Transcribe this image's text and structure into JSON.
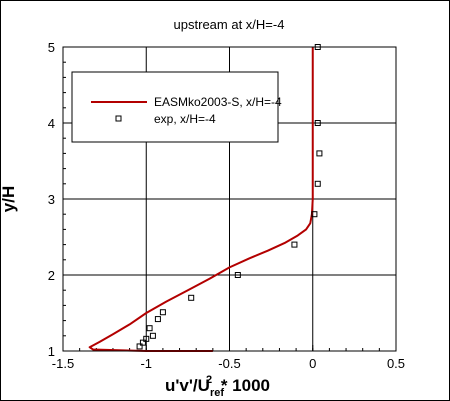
{
  "chart_data": {
    "type": "line",
    "title": "upstream at x/H=-4",
    "xlabel": {
      "main": "u'v'/U",
      "sub": "ref",
      "sup": "2",
      "tail": " * 1000"
    },
    "ylabel": "y/H",
    "xlim": [
      -1.5,
      0.5
    ],
    "ylim": [
      1,
      5
    ],
    "xticks": [
      -1.5,
      -1,
      -0.5,
      0,
      0.5
    ],
    "xtick_labels": [
      "-1.5",
      "-1",
      "-0.5",
      "0",
      "0.5"
    ],
    "yticks": [
      1,
      2,
      3,
      4,
      5
    ],
    "ytick_labels": [
      "1",
      "2",
      "3",
      "4",
      "5"
    ],
    "grid": true,
    "legend_position": "top-left",
    "series": [
      {
        "name": "EASMko2003-S, x/H=-4",
        "kind": "line",
        "color": "#b30000",
        "x": [
          -0.6,
          -1.0,
          -1.32,
          -1.34,
          -1.28,
          -1.2,
          -1.1,
          -1.0,
          -0.88,
          -0.75,
          -0.62,
          -0.5,
          -0.38,
          -0.27,
          -0.17,
          -0.09,
          -0.04,
          -0.015,
          -0.005,
          0.0,
          0.0,
          0.0
        ],
        "y": [
          1.0,
          1.0,
          1.02,
          1.05,
          1.12,
          1.22,
          1.35,
          1.5,
          1.65,
          1.8,
          1.95,
          2.1,
          2.22,
          2.32,
          2.42,
          2.52,
          2.6,
          2.68,
          2.8,
          3.0,
          4.0,
          5.0
        ]
      },
      {
        "name": "exp, x/H=-4",
        "kind": "scatter",
        "marker": "square",
        "color": "#000000",
        "x": [
          -1.04,
          -1.02,
          -1.0,
          -0.98,
          -0.96,
          -0.93,
          -0.9,
          -0.73,
          -0.45,
          -0.11,
          0.01,
          0.03,
          0.04,
          0.03,
          0.03
        ],
        "y": [
          1.06,
          1.11,
          1.16,
          1.3,
          1.2,
          1.42,
          1.51,
          1.7,
          2.0,
          2.4,
          2.8,
          3.2,
          3.6,
          4.0,
          5.0
        ]
      }
    ]
  }
}
